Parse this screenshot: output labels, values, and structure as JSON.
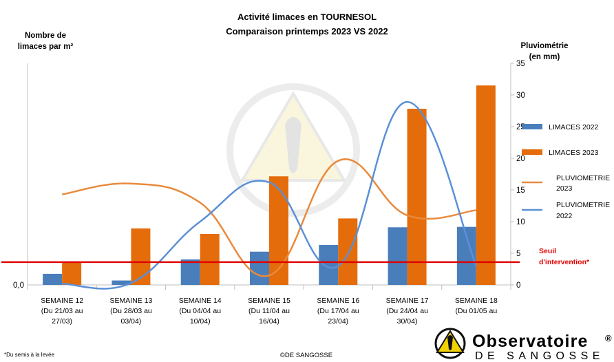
{
  "chart_data": {
    "type": "bar",
    "title": "Activité limaces en TOURNESOL",
    "subtitle": "Comparaison printemps 2023 VS 2022",
    "ylabel_left": [
      "Nombre de",
      "limaces par m²"
    ],
    "ylabel_right": [
      "Pluviométrie",
      "(en mm)"
    ],
    "left_tick_labels": [
      "0,0"
    ],
    "right_ticks": [
      0,
      5,
      10,
      15,
      20,
      25,
      30,
      35
    ],
    "ylim_right": [
      0,
      35
    ],
    "categories": [
      [
        "SEMAINE 12",
        "(Du 21/03 au",
        "27/03)"
      ],
      [
        "SEMAINE 13",
        "(Du 28/03 au",
        "03/04)"
      ],
      [
        "SEMAINE 14",
        "(Du 04/04 au",
        "10/04)"
      ],
      [
        "SEMAINE 15",
        "(Du 11/04 au",
        "16/04)"
      ],
      [
        "SEMAINE 16",
        "(Du 17/04 au",
        "23/04)"
      ],
      [
        "SEMAINE 17",
        "(Du 24/04 au",
        "30/04)"
      ],
      [
        "SEMAINE 18",
        "(Du 01/05 au"
      ]
    ],
    "left_scale_note": "left axis unlabeled except 0,0; bar values expressed relative to left axis top",
    "series": [
      {
        "name": "LIMACES 2022",
        "kind": "bar",
        "color": "#4a7ebb",
        "values": [
          0.05,
          0.02,
          0.115,
          0.15,
          0.18,
          0.26,
          0.262
        ]
      },
      {
        "name": "LIMACES 2023",
        "kind": "bar",
        "color": "#e46c0a",
        "values": [
          0.105,
          0.255,
          0.23,
          0.49,
          0.3,
          0.795,
          0.9
        ]
      },
      {
        "name": "PLUVIOMETRIE 2023",
        "kind": "line",
        "axis": "right",
        "color": "#e98a3c",
        "values": [
          14.3,
          16.0,
          13.0,
          1.5,
          19.6,
          11.0,
          11.8
        ]
      },
      {
        "name": "PLUVIOMETRIE 2022",
        "kind": "line",
        "axis": "right",
        "color": "#5b90d6",
        "values": [
          0.2,
          0.3,
          10.0,
          16.2,
          3.0,
          28.9,
          3.0
        ]
      }
    ],
    "threshold": {
      "label": [
        "Seuil",
        "d'intervention*"
      ],
      "value_right_axis": 3.6,
      "color": "#e00000"
    },
    "legend_position": "right"
  },
  "footnote": "*Du semis à la levée",
  "copyright": "©DE SANGOSSE",
  "logo": {
    "line1": "Observatoire",
    "registered": "®",
    "line2": "DE SANGOSSE"
  }
}
